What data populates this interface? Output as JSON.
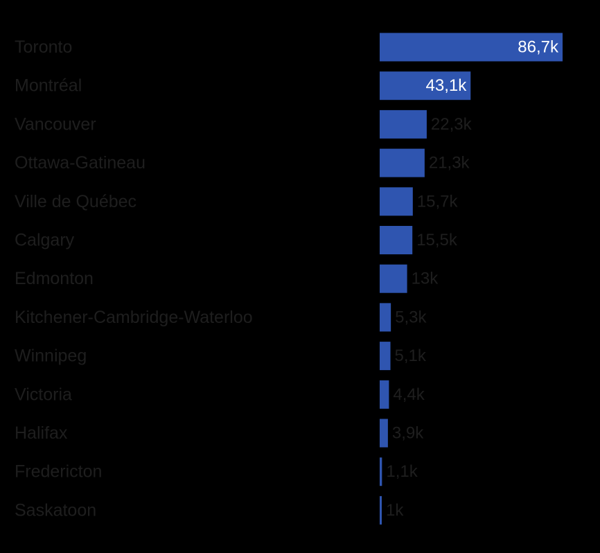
{
  "chart_data": {
    "type": "bar",
    "orientation": "horizontal",
    "categories": [
      "Toronto",
      "Montréal",
      "Vancouver",
      "Ottawa-Gatineau",
      "Ville de Québec",
      "Calgary",
      "Edmonton",
      "Kitchener-Cambridge-Waterloo",
      "Winnipeg",
      "Victoria",
      "Halifax",
      "Fredericton",
      "Saskatoon"
    ],
    "values": [
      86700,
      43100,
      22300,
      21300,
      15700,
      15500,
      13000,
      5300,
      5100,
      4400,
      3900,
      1100,
      1000
    ],
    "data_labels": [
      "86,7k",
      "43,1k",
      "22,3k",
      "21,3k",
      "15,7k",
      "15,5k",
      "13k",
      "5,3k",
      "5,1k",
      "4,4k",
      "3,9k",
      "1,1k",
      "1k"
    ],
    "title": "",
    "xlabel": "",
    "ylabel": "",
    "xlim": [
      0,
      86700
    ],
    "grid": false,
    "legend": "none",
    "colors": {
      "background": "#000000",
      "bar": "#2f55b0",
      "category_label": "#1e1e1e",
      "value_label_outside": "#1e1e1e",
      "value_label_inside": "#ffffff"
    }
  }
}
